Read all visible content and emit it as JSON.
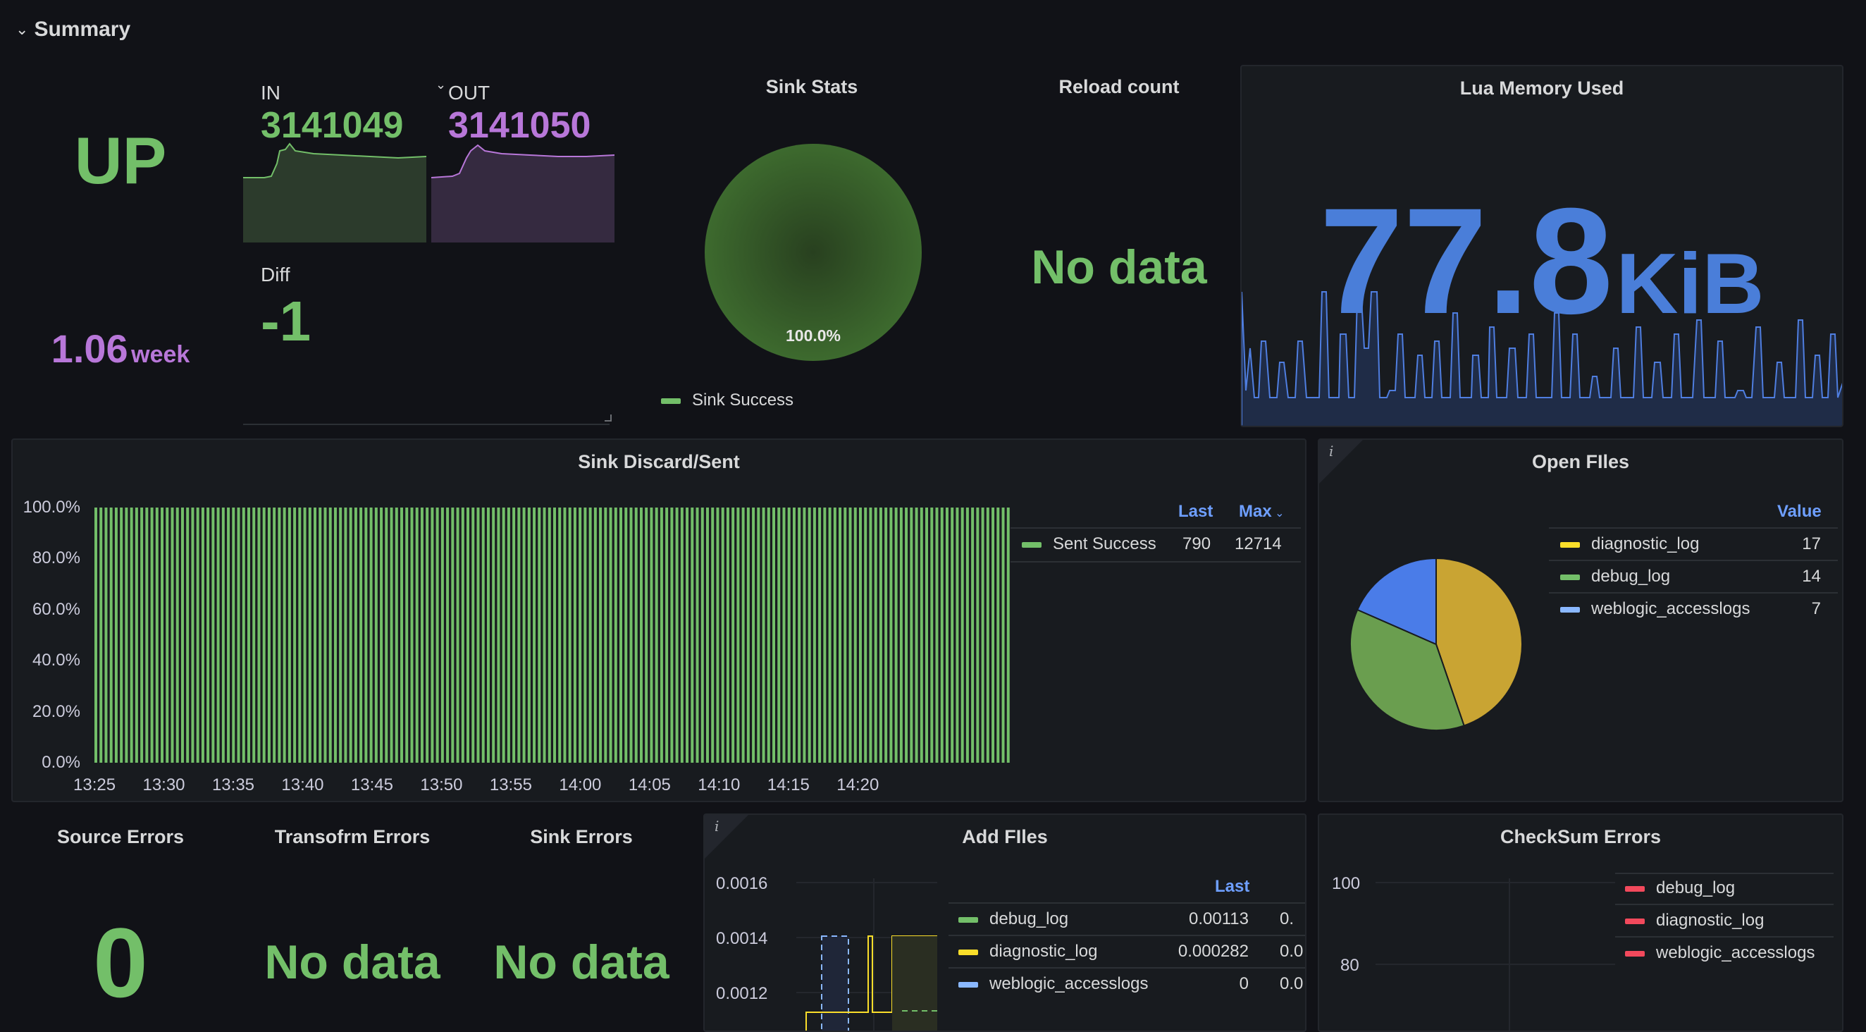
{
  "row": {
    "title": "Summary"
  },
  "status": {
    "value": "UP",
    "uptime_value": "1.06",
    "uptime_unit": "week"
  },
  "io": {
    "in_label": "IN",
    "in_value": "3141049",
    "out_label": "OUT",
    "out_value": "3141050",
    "diff_label": "Diff",
    "diff_value": "-1"
  },
  "sink_stats": {
    "title": "Sink Stats",
    "slice_label": "100.0%",
    "legend": "Sink Success",
    "success_pct": 100,
    "color": "#73bf69"
  },
  "reload": {
    "title": "Reload count",
    "value": "No data"
  },
  "lua": {
    "title": "Lua Memory Used",
    "value": "77.8",
    "unit": "KiB",
    "color": "#5794f2"
  },
  "sink_discard": {
    "title": "Sink Discard/Sent",
    "legend_headers": {
      "last": "Last",
      "max": "Max"
    },
    "legend": [
      {
        "name": "Sent Success",
        "last": "790",
        "max": "12714",
        "color": "#73bf69"
      }
    ]
  },
  "open_files": {
    "title": "Open FIles",
    "info_icon": "i",
    "value_header": "Value",
    "legend": [
      {
        "name": "diagnostic_log",
        "value": "17",
        "color": "#fade2a"
      },
      {
        "name": "debug_log",
        "value": "14",
        "color": "#73bf69"
      },
      {
        "name": "weblogic_accesslogs",
        "value": "7",
        "color": "#8ab8ff"
      }
    ]
  },
  "source_errors": {
    "title": "Source Errors",
    "value": "0"
  },
  "transform_errors": {
    "title": "Transofrm Errors",
    "value": "No data"
  },
  "sink_errors": {
    "title": "Sink Errors",
    "value": "No data"
  },
  "add_files": {
    "title": "Add FIles",
    "info_icon": "i",
    "last_header": "Last",
    "y_ticks": [
      "0.0016",
      "0.0014",
      "0.0012"
    ],
    "legend": [
      {
        "name": "debug_log",
        "last": "0.00113",
        "extra": "0.",
        "color": "#73bf69"
      },
      {
        "name": "diagnostic_log",
        "last": "0.000282",
        "extra": "0.0",
        "color": "#fade2a"
      },
      {
        "name": "weblogic_accesslogs",
        "last": "0",
        "extra": "0.0",
        "color": "#8ab8ff"
      }
    ]
  },
  "checksum": {
    "title": "CheckSum Errors",
    "y_ticks": [
      "100",
      "80"
    ],
    "legend": [
      {
        "name": "debug_log",
        "color": "#f2495c"
      },
      {
        "name": "diagnostic_log",
        "color": "#f2495c"
      },
      {
        "name": "weblogic_accesslogs",
        "color": "#f2495c"
      }
    ]
  },
  "chart_data": [
    {
      "type": "pie",
      "title": "Sink Stats",
      "labels": [
        "Sink Success"
      ],
      "values": [
        100
      ],
      "slice_labels": [
        "100.0%"
      ]
    },
    {
      "type": "bar",
      "title": "Sink Discard/Sent",
      "x_ticks": [
        "13:25",
        "13:30",
        "13:35",
        "13:40",
        "13:45",
        "13:50",
        "13:55",
        "14:00",
        "14:05",
        "14:10",
        "14:15",
        "14:20"
      ],
      "y_ticks": [
        "100.0%",
        "80.0%",
        "60.0%",
        "40.0%",
        "20.0%",
        "0.0%"
      ],
      "ylim": [
        0,
        100
      ],
      "series": [
        {
          "name": "Sent Success",
          "value_pct": 100,
          "bar_count": 180
        }
      ]
    },
    {
      "type": "pie",
      "title": "Open FIles",
      "labels": [
        "diagnostic_log",
        "debug_log",
        "weblogic_accesslogs"
      ],
      "values": [
        17,
        14,
        7
      ]
    }
  ]
}
